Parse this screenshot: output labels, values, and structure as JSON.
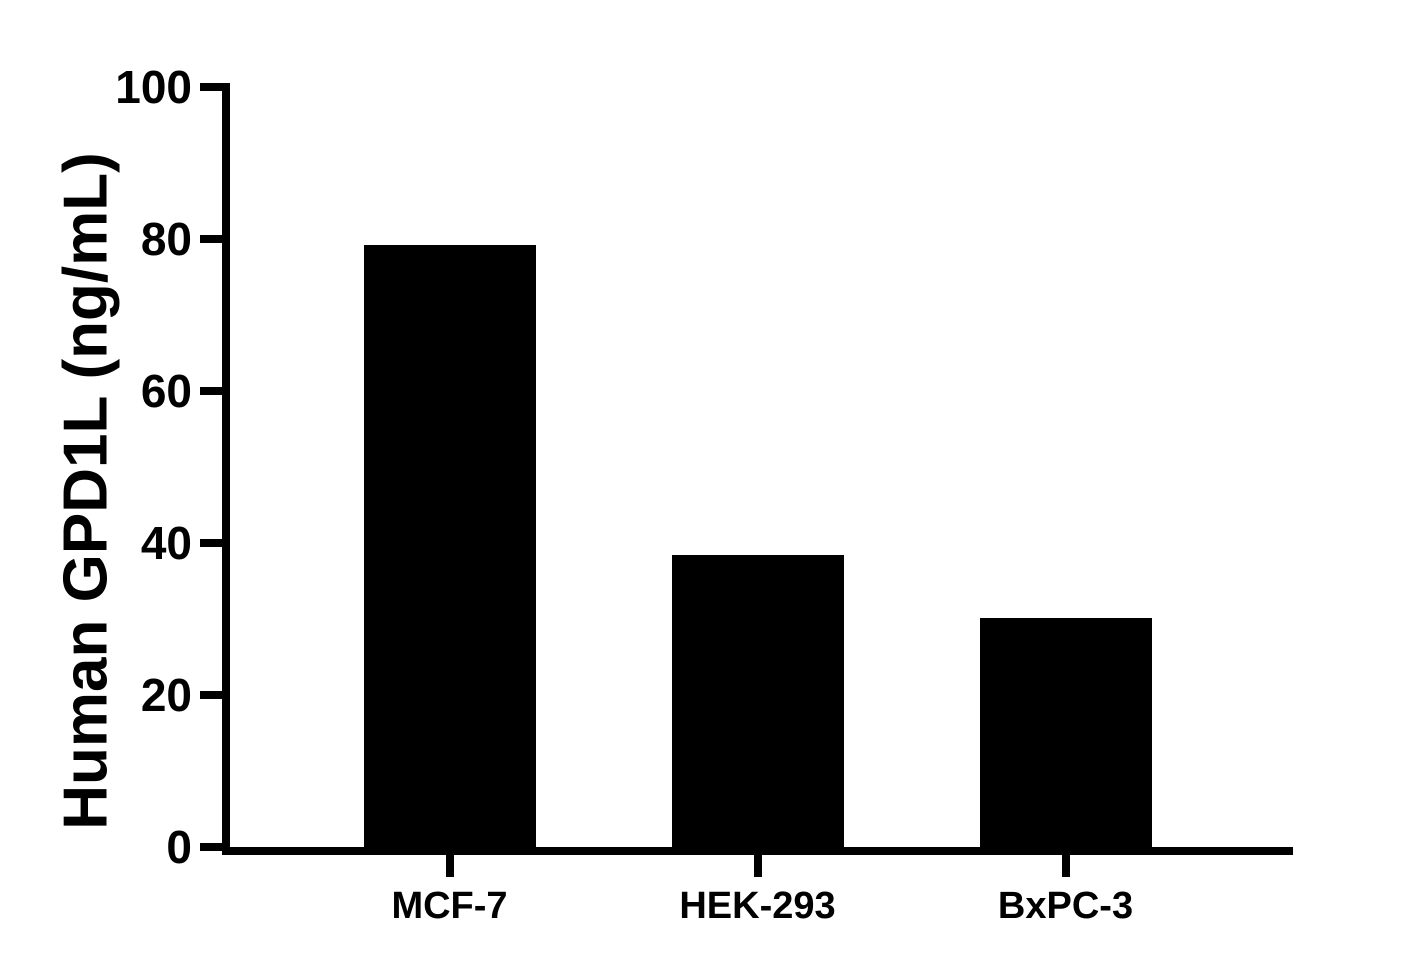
{
  "chart_data": {
    "type": "bar",
    "title": "",
    "ylabel": "Human GPD1L (ng/mL)",
    "xlabel": "",
    "categories": [
      "MCF-7",
      "HEK-293",
      "BxPC-3"
    ],
    "values": [
      79.2,
      38.4,
      30.1
    ],
    "ylim": [
      0,
      100
    ],
    "yticks": [
      0,
      20,
      40,
      60,
      80,
      100
    ],
    "bar_color": "#000000",
    "axis_color": "#000000",
    "background_color": "#ffffff",
    "grid": false,
    "legend": false
  }
}
